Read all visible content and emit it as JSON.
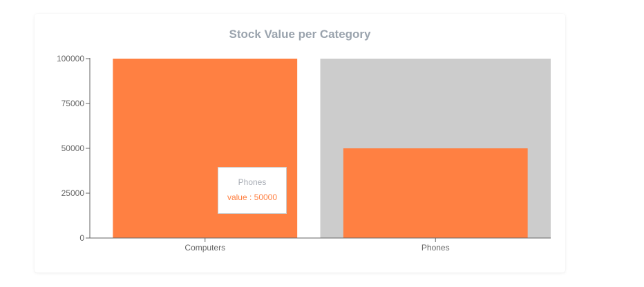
{
  "chart_data": {
    "type": "bar",
    "title": "Stock Value per Category",
    "categories": [
      "Computers",
      "Phones"
    ],
    "values": [
      100000,
      50000
    ],
    "ylim": [
      0,
      100000
    ],
    "yticks": [
      "0",
      "25000",
      "50000",
      "75000",
      "100000"
    ],
    "grid": false,
    "highlighted_category": "Phones",
    "colors": {
      "bar": "#ff8042",
      "hover_background": "#cccccc",
      "axis": "#666666",
      "title": "#9aa3ad"
    }
  },
  "tooltip": {
    "label": "Phones",
    "value_text": "value : 50000"
  }
}
